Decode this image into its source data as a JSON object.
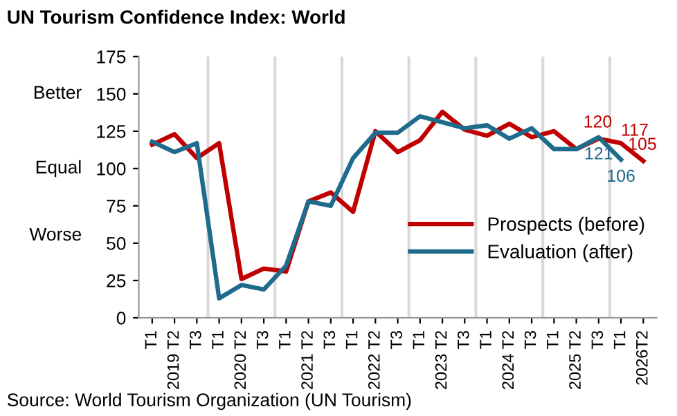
{
  "chart_data": {
    "type": "line",
    "title": "UN Tourism Confidence Index: World",
    "categories": [
      "T1",
      "2019 T2",
      "T3",
      "T1",
      "2020 T2",
      "T3",
      "T1",
      "2021 T2",
      "T3",
      "T1",
      "2022 T2",
      "T3",
      "T1",
      "2023 T2",
      "T3",
      "T1",
      "2024 T2",
      "T3",
      "T1",
      "2025 T2",
      "T3",
      "T1",
      "2026T2"
    ],
    "series": [
      {
        "name": "Prospects (before)",
        "color": "#c00000",
        "values": [
          116,
          123,
          107,
          117,
          26,
          33,
          31,
          78,
          84,
          71,
          125,
          111,
          119,
          138,
          126,
          122,
          130,
          121,
          125,
          113,
          120,
          117,
          105
        ],
        "value_labels": [
          null,
          null,
          null,
          null,
          null,
          null,
          null,
          null,
          null,
          null,
          null,
          null,
          null,
          null,
          null,
          null,
          null,
          null,
          null,
          null,
          "120",
          "117",
          "105"
        ]
      },
      {
        "name": "Evaluation (after)",
        "color": "#1f6b8c",
        "values": [
          118,
          111,
          117,
          13,
          22,
          19,
          35,
          78,
          75,
          107,
          124,
          124,
          135,
          131,
          127,
          129,
          120,
          127,
          113,
          113,
          121,
          106,
          null
        ],
        "value_labels": [
          null,
          null,
          null,
          null,
          null,
          null,
          null,
          null,
          null,
          null,
          null,
          null,
          null,
          null,
          null,
          null,
          null,
          null,
          null,
          null,
          "121",
          "106",
          null
        ]
      }
    ],
    "ylim": [
      0,
      175
    ],
    "yticks": [
      0,
      25,
      50,
      75,
      100,
      125,
      150,
      175
    ],
    "grid": "x",
    "legend": "right",
    "annotations": [
      "Better",
      "Equal",
      "Worse",
      "Source: World Tourism Organization (UN Tourism)"
    ]
  }
}
